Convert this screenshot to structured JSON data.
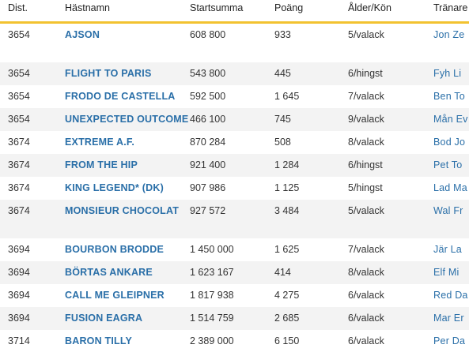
{
  "header": {
    "columns": [
      "Dist.",
      "Hästnamn",
      "Startsumma",
      "Poäng",
      "Ålder/Kön",
      "Tränare"
    ]
  },
  "table": {
    "rows": [
      [
        "3654",
        "AJSON",
        "608 800",
        "933",
        "5/valack",
        "Jon Ze"
      ],
      [
        "3654",
        "FLIGHT TO PARIS",
        "543 800",
        "445",
        "6/hingst",
        "Fyh Li"
      ],
      [
        "3654",
        "FRODO DE CASTELLA",
        "592 500",
        "1 645",
        "7/valack",
        "Ben To"
      ],
      [
        "3654",
        "UNEXPECTED OUTCOME",
        "466 100",
        "745",
        "9/valack",
        "Mån Ev"
      ],
      [
        "3674",
        "EXTREME A.F.",
        "870 284",
        "508",
        "8/valack",
        "Bod Jo"
      ],
      [
        "3674",
        "FROM THE HIP",
        "921 400",
        "1 284",
        "6/hingst",
        "Pet To"
      ],
      [
        "3674",
        "KING LEGEND* (DK)",
        "907 986",
        "1 125",
        "5/hingst",
        "Lad Ma"
      ],
      [
        "3674",
        "MONSIEUR CHOCOLAT",
        "927 572",
        "3 484",
        "5/valack",
        "Wal Fr"
      ],
      [
        "3694",
        "BOURBON BRODDE",
        "1 450 000",
        "1 625",
        "7/valack",
        "Jär La"
      ],
      [
        "3694",
        "BÖRTAS ANKARE",
        "1 623 167",
        "414",
        "8/valack",
        "Elf Mi"
      ],
      [
        "3694",
        "CALL ME GLEIPNER",
        "1 817 938",
        "4 275",
        "6/valack",
        "Red Da"
      ],
      [
        "3694",
        "FUSION EAGRA",
        "1 514 759",
        "2 685",
        "6/valack",
        "Mar Er"
      ],
      [
        "3714",
        "BARON TILLY",
        "2 389 000",
        "6 150",
        "6/valack",
        "Per Da"
      ]
    ]
  }
}
